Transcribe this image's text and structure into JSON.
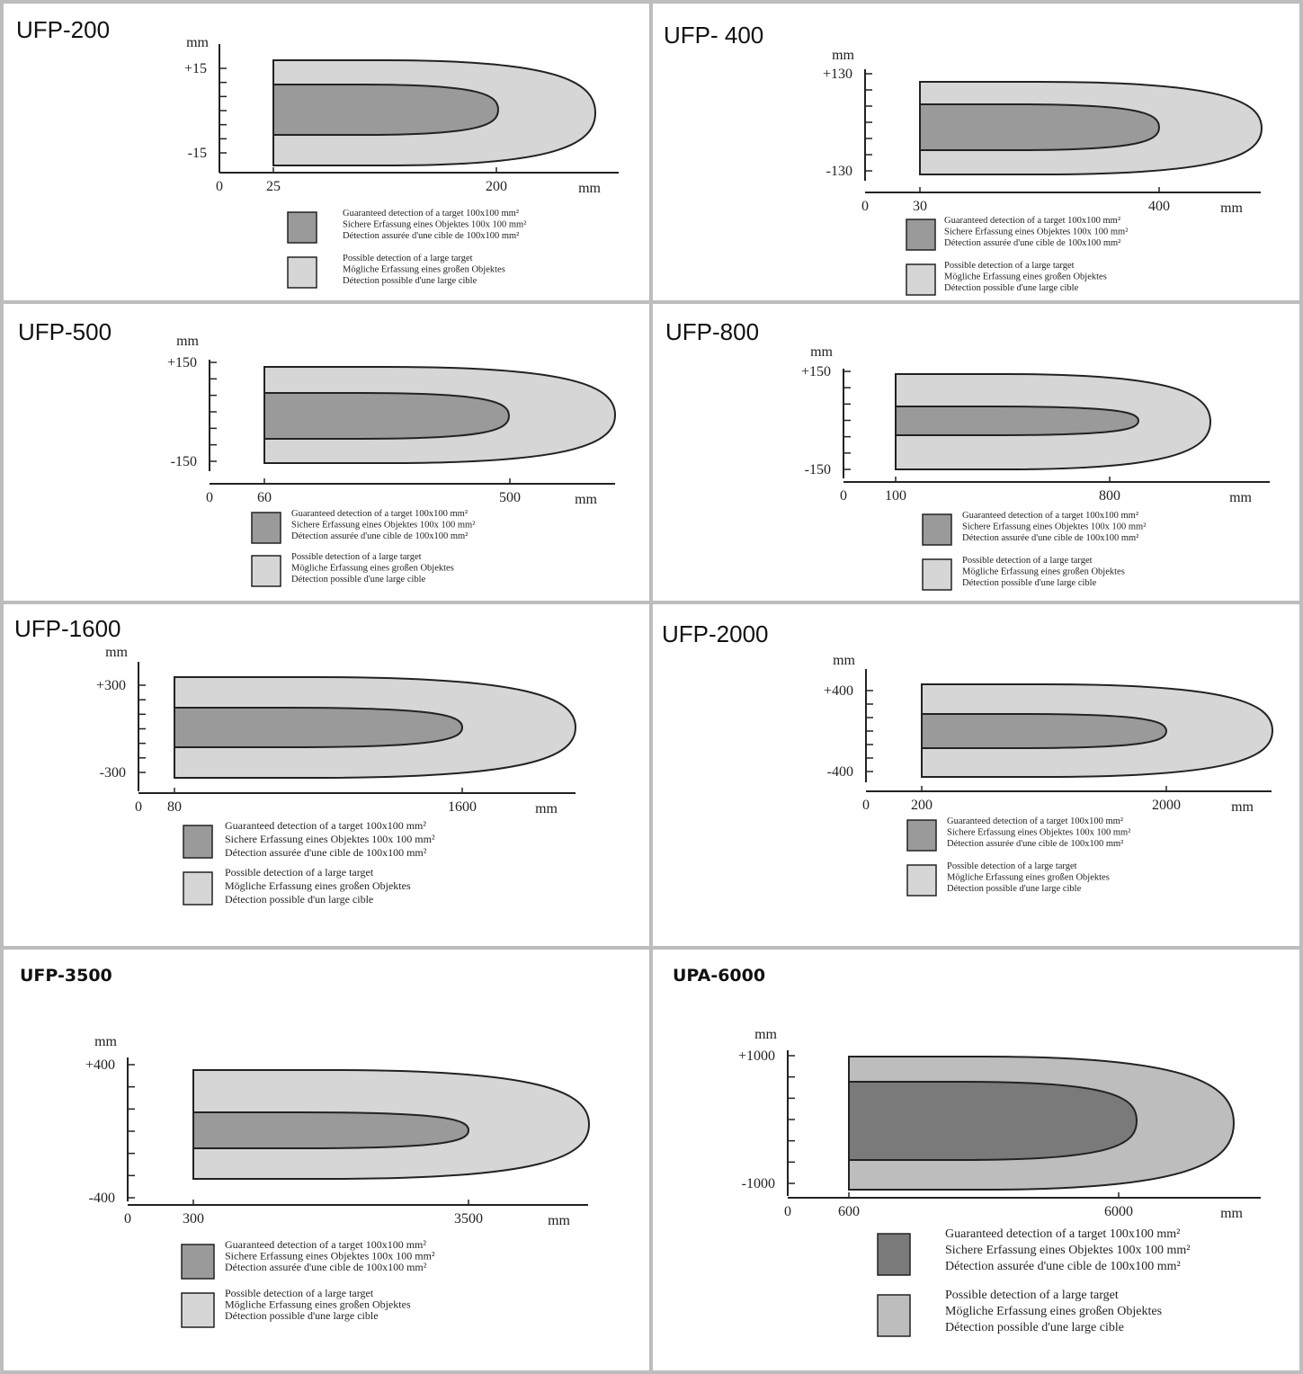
{
  "colors": {
    "border": "#bdbdbd",
    "guaranteed": "#9a9a9a",
    "possible": "#d6d6d6",
    "guaranteed_dark": "#7a7a7a",
    "possible_dark": "#bdbdbd",
    "line": "#222222"
  },
  "panels": [
    {
      "id": "ufp-200",
      "title": "UFP-200",
      "unit": "mm",
      "y_top": "+15",
      "y_bottom": "-15",
      "x_zero": "0",
      "x_start": "25",
      "x_mid": "200",
      "x_unit": "mm",
      "legend": {
        "guaranteed": [
          "Guaranteed detection of a target 100x100 mm²",
          "Sichere Erfassung eines Objektes 100x 100 mm²",
          "Détection assurée d'une cible de 100x100 mm²"
        ],
        "possible": [
          "Possible detection of a large target",
          "Mögliche Erfassung eines großen Objektes",
          "Détection possible d'une large cible"
        ]
      }
    },
    {
      "id": "ufp-400",
      "title": "UFP- 400",
      "unit": "mm",
      "y_top": "+130",
      "y_bottom": "-130",
      "x_zero": "0",
      "x_start": "30",
      "x_mid": "400",
      "x_unit": "mm",
      "legend": {
        "guaranteed": [
          "Guaranteed detection of a target 100x100 mm²",
          "Sichere Erfassung eines Objektes 100x 100 mm²",
          "Détection assurée d'une cible de 100x100 mm²"
        ],
        "possible": [
          "Possible detection of a large target",
          "Mögliche Erfassung eines großen Objektes",
          "Détection possible d'une large cible"
        ]
      }
    },
    {
      "id": "ufp-500",
      "title": "UFP-500",
      "unit": "mm",
      "y_top": "+150",
      "y_bottom": "-150",
      "x_zero": "0",
      "x_start": "60",
      "x_mid": "500",
      "x_unit": "mm",
      "legend": {
        "guaranteed": [
          "Guaranteed detection of a target 100x100 mm²",
          "Sichere Erfassung eines Objektes 100x 100 mm²",
          "Détection assurée d'une cible de 100x100 mm²"
        ],
        "possible": [
          "Possible detection of a large target",
          "Mögliche Erfassung eines großen Objektes",
          "Détection possible d'une large cible"
        ]
      }
    },
    {
      "id": "ufp-800",
      "title": "UFP-800",
      "unit": "mm",
      "y_top": "+150",
      "y_bottom": "-150",
      "x_zero": "0",
      "x_start": "100",
      "x_mid": "800",
      "x_unit": "mm",
      "legend": {
        "guaranteed": [
          "Guaranteed detection of a target 100x100 mm²",
          "Sichere Erfassung eines Objektes 100x 100 mm²",
          "Détection assurée d'une cible de 100x100 mm²"
        ],
        "possible": [
          "Possible detection of a large target",
          "Mögliche Erfassung eines großen Objektes",
          "Détection possible d'une large cible"
        ]
      }
    },
    {
      "id": "ufp-1600",
      "title": "UFP-1600",
      "unit": "mm",
      "y_top": "+300",
      "y_bottom": "-300",
      "x_zero": "0",
      "x_start": "80",
      "x_mid": "1600",
      "x_unit": "mm",
      "legend": {
        "guaranteed": [
          "Guaranteed detection of a target 100x100 mm²",
          "Sichere Erfassung eines Objektes 100x 100 mm²",
          "Détection assurée d'une cible de 100x100 mm²"
        ],
        "possible": [
          "Possible detection of a large target",
          "Mögliche Erfassung eines großen Objektes",
          "Détection possible d'un large cible"
        ]
      }
    },
    {
      "id": "ufp-2000",
      "title": "UFP-2000",
      "unit": "mm",
      "y_top": "+400",
      "y_bottom": "-400",
      "x_zero": "0",
      "x_start": "200",
      "x_mid": "2000",
      "x_unit": "mm",
      "legend": {
        "guaranteed": [
          "Guaranteed detection of a target 100x100 mm²",
          "Sichere Erfassung eines Objektes 100x 100 mm²",
          "Détection assurée d'une cible de 100x100 mm²"
        ],
        "possible": [
          "Possible detection of a large target",
          "Mögliche Erfassung eines großen Objektes",
          "Détection possible d'une large cible"
        ]
      }
    },
    {
      "id": "ufp-3500",
      "title": "UFP-3500",
      "unit": "mm",
      "y_top": "+400",
      "y_bottom": "-400",
      "x_zero": "0",
      "x_start": "300",
      "x_mid": "3500",
      "x_unit": "mm",
      "legend": {
        "guaranteed": [
          "Guaranteed detection of a target 100x100 mm²",
          "Sichere Erfassung eines Objektes 100x 100 mm²",
          "Détection assurée d'une cible de 100x100 mm²"
        ],
        "possible": [
          "Possible detection of a large target",
          "Mögliche Erfassung eines großen Objektes",
          "Détection possible d'une large cible"
        ]
      }
    },
    {
      "id": "upa-6000",
      "title": "UPA-6000",
      "unit": "mm",
      "y_top": "+1000",
      "y_bottom": "-1000",
      "x_zero": "0",
      "x_start": "600",
      "x_mid": "6000",
      "x_unit": "mm",
      "legend": {
        "guaranteed": [
          "Guaranteed detection of a target 100x100 mm²",
          "Sichere Erfassung eines Objektes 100x 100 mm²",
          "Détection assurée d'une cible de 100x100 mm²"
        ],
        "possible": [
          "Possible detection of a large target",
          "Mögliche Erfassung eines großen Objektes",
          "Détection possible d'une large cible"
        ]
      }
    }
  ]
}
